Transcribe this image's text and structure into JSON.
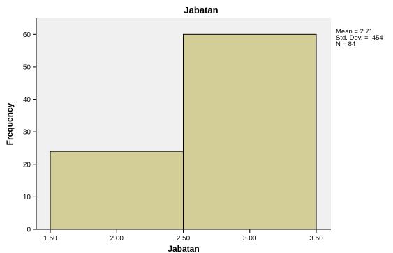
{
  "chart_data": {
    "type": "bar",
    "title": "Jabatan",
    "xlabel": "Jabatan",
    "ylabel": "Frequency",
    "bins": [
      {
        "start": 1.5,
        "end": 2.5,
        "value": 24
      },
      {
        "start": 2.5,
        "end": 3.5,
        "value": 60
      }
    ],
    "xlim": [
      1.5,
      3.5
    ],
    "ylim": [
      0,
      65
    ],
    "xticks": [
      "1.50",
      "2.00",
      "2.50",
      "3.00",
      "3.50"
    ],
    "yticks": [
      0,
      10,
      20,
      30,
      40,
      50,
      60
    ],
    "grid": false,
    "stats": {
      "mean": "Mean = 2.71",
      "std_dev": "Std. Dev. = .454",
      "n": "N = 84"
    },
    "colors": {
      "plot_background": "#f0f0f0",
      "bar_fill": "#d3ce98",
      "bar_stroke": "#000000",
      "axis": "#000000"
    }
  }
}
